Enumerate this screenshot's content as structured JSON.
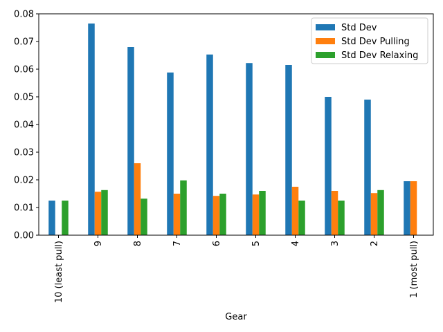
{
  "chart_data": {
    "type": "bar",
    "xlabel": "Gear",
    "ylabel": "",
    "ylim": [
      0,
      0.08
    ],
    "yticks": [
      "0.00",
      "0.01",
      "0.02",
      "0.03",
      "0.04",
      "0.05",
      "0.06",
      "0.07",
      "0.08"
    ],
    "categories": [
      "10 (least pull)",
      "9",
      "8",
      "7",
      "6",
      "5",
      "4",
      "3",
      "2",
      "1 (most pull)"
    ],
    "series": [
      {
        "name": "Std Dev",
        "color": "#1f77b4",
        "values": [
          0.0125,
          0.0765,
          0.068,
          0.0588,
          0.0653,
          0.0622,
          0.0615,
          0.05,
          0.049,
          0.0195
        ]
      },
      {
        "name": "Std Dev Pulling",
        "color": "#ff7f0e",
        "values": [
          null,
          0.0157,
          0.026,
          0.015,
          0.0142,
          0.0147,
          0.0175,
          0.016,
          0.0152,
          0.0195
        ]
      },
      {
        "name": "Std Dev Relaxing",
        "color": "#2ca02c",
        "values": [
          0.0125,
          0.0163,
          0.0132,
          0.0198,
          0.015,
          0.016,
          0.0125,
          0.0125,
          0.0163,
          null
        ]
      }
    ],
    "legend": "top-right",
    "grid": false
  }
}
